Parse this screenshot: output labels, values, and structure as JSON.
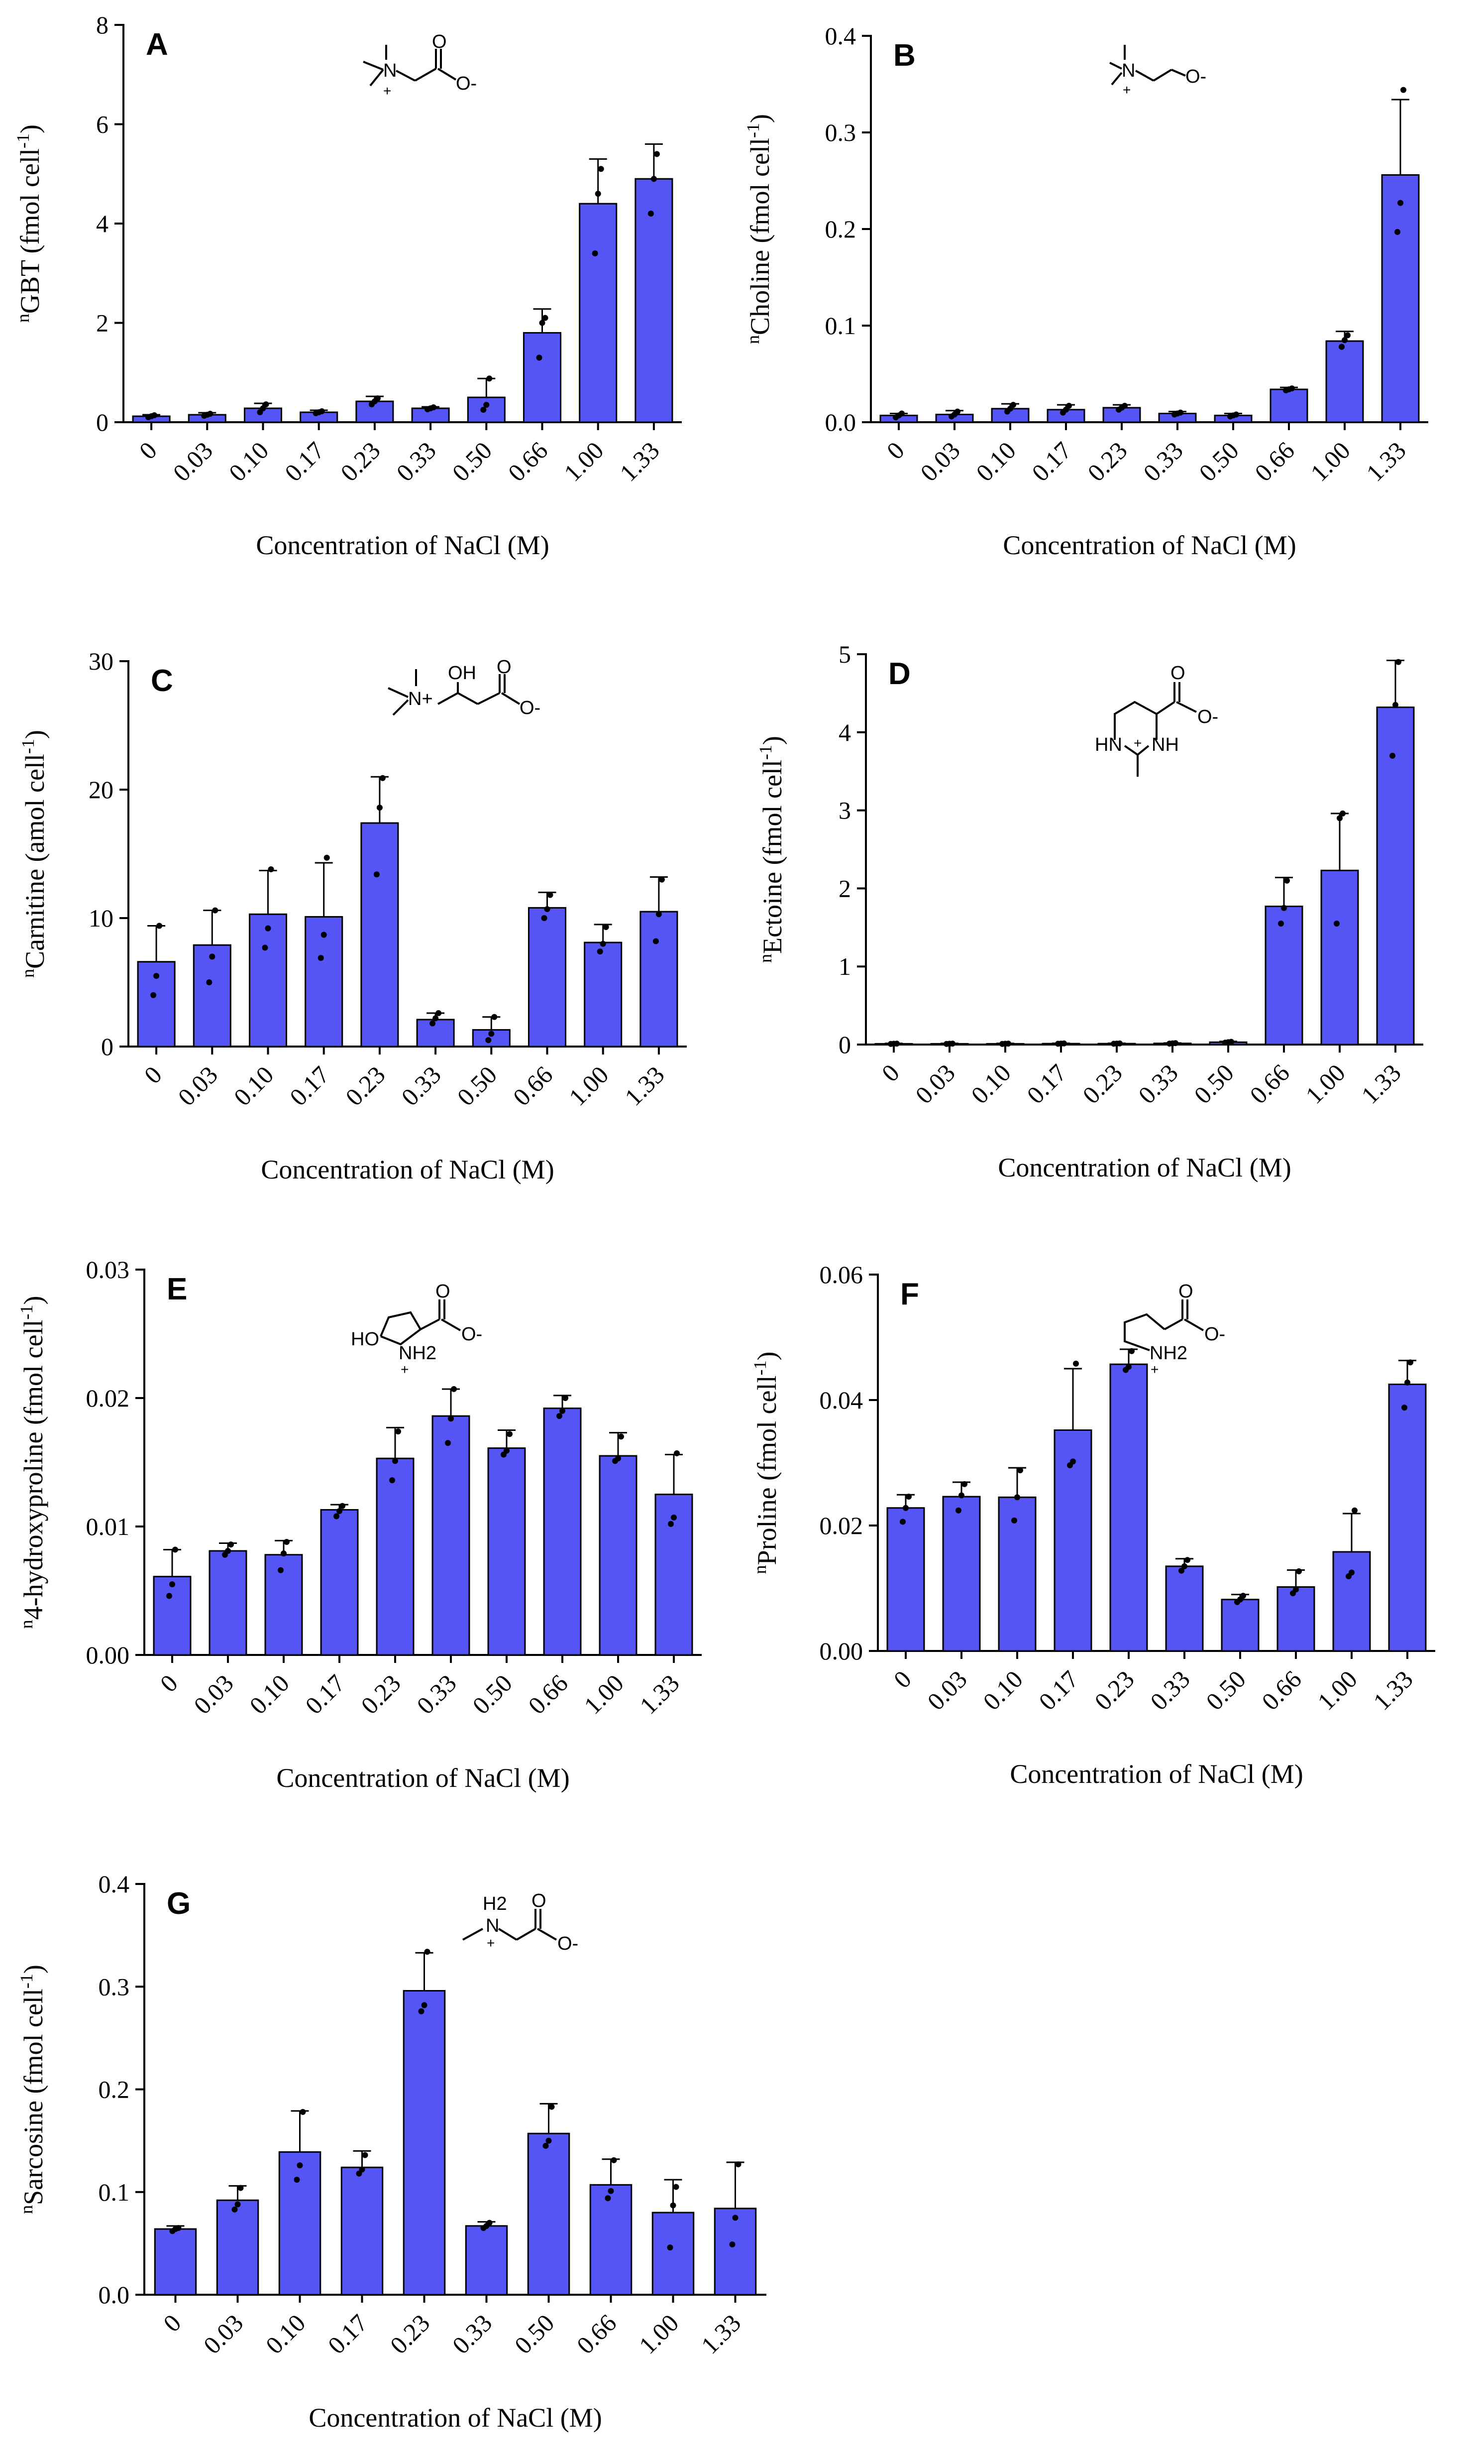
{
  "figure": {
    "x_axis_title": "Concentration of NaCl (M)",
    "bar_color": "#5555f5"
  },
  "chart_data": [
    {
      "type": "bar",
      "panel": "A",
      "ylabel": "nGBT (fmol cell-1)",
      "ylabel_parts": {
        "sup_prefix": "n",
        "main": "GBT (fmol cell",
        "sup": "-1",
        "close": ")"
      },
      "xlabel": "Concentration of NaCl (M)",
      "categories": [
        "0",
        "0.03",
        "0.10",
        "0.17",
        "0.23",
        "0.33",
        "0.50",
        "0.66",
        "1.00",
        "1.33"
      ],
      "values": [
        0.12,
        0.15,
        0.28,
        0.2,
        0.42,
        0.28,
        0.5,
        1.8,
        4.4,
        4.9
      ],
      "errors": [
        0.03,
        0.04,
        0.1,
        0.04,
        0.1,
        0.03,
        0.38,
        0.48,
        0.9,
        0.7
      ],
      "points": [
        [
          0.1,
          0.12,
          0.14
        ],
        [
          0.13,
          0.15,
          0.17
        ],
        [
          0.2,
          0.28,
          0.36
        ],
        [
          0.18,
          0.2,
          0.22
        ],
        [
          0.36,
          0.42,
          0.48
        ],
        [
          0.26,
          0.28,
          0.3
        ],
        [
          0.25,
          0.35,
          0.88
        ],
        [
          1.3,
          2.0,
          2.1
        ],
        [
          3.4,
          4.6,
          5.1
        ],
        [
          4.2,
          4.9,
          5.4
        ]
      ],
      "yticks": [
        0,
        2,
        4,
        6,
        8
      ],
      "ytick_labels": [
        "0",
        "2",
        "4",
        "6",
        "8"
      ],
      "ylim": [
        0,
        8
      ],
      "structure": "GBT"
    },
    {
      "type": "bar",
      "panel": "B",
      "ylabel": "nCholine (fmol cell-1)",
      "ylabel_parts": {
        "sup_prefix": "n",
        "main": "Choline (fmol cell",
        "sup": "-1",
        "close": ")"
      },
      "xlabel": "Concentration of NaCl (M)",
      "categories": [
        "0",
        "0.03",
        "0.10",
        "0.17",
        "0.23",
        "0.33",
        "0.50",
        "0.66",
        "1.00",
        "1.33"
      ],
      "values": [
        0.007,
        0.008,
        0.014,
        0.013,
        0.015,
        0.009,
        0.007,
        0.034,
        0.084,
        0.256
      ],
      "errors": [
        0.002,
        0.004,
        0.005,
        0.005,
        0.003,
        0.002,
        0.002,
        0.002,
        0.01,
        0.078
      ],
      "points": [
        [
          0.005,
          0.007,
          0.009
        ],
        [
          0.006,
          0.008,
          0.011
        ],
        [
          0.011,
          0.014,
          0.018
        ],
        [
          0.01,
          0.013,
          0.017
        ],
        [
          0.013,
          0.015,
          0.017
        ],
        [
          0.008,
          0.009,
          0.01
        ],
        [
          0.006,
          0.007,
          0.008
        ],
        [
          0.033,
          0.034,
          0.035
        ],
        [
          0.078,
          0.085,
          0.09
        ],
        [
          0.197,
          0.227,
          0.344
        ]
      ],
      "yticks": [
        0,
        0.1,
        0.2,
        0.3,
        0.4
      ],
      "ytick_labels": [
        "0.0",
        "0.1",
        "0.2",
        "0.3",
        "0.4"
      ],
      "ylim": [
        0,
        0.4
      ],
      "structure": "Choline"
    },
    {
      "type": "bar",
      "panel": "C",
      "ylabel": "nCarnitine (amol cell-1)",
      "ylabel_parts": {
        "sup_prefix": "n",
        "main": "Carnitine (amol cell",
        "sup": "-1",
        "close": ")"
      },
      "xlabel": "Concentration of NaCl (M)",
      "categories": [
        "0",
        "0.03",
        "0.10",
        "0.17",
        "0.23",
        "0.33",
        "0.50",
        "0.66",
        "1.00",
        "1.33"
      ],
      "values": [
        6.6,
        7.9,
        10.3,
        10.1,
        17.4,
        2.1,
        1.3,
        10.8,
        8.1,
        10.5
      ],
      "errors": [
        2.8,
        2.7,
        3.4,
        4.2,
        3.6,
        0.5,
        1.0,
        1.2,
        1.4,
        2.7
      ],
      "points": [
        [
          4.0,
          5.5,
          9.4
        ],
        [
          5.0,
          7.0,
          10.6
        ],
        [
          7.7,
          9.2,
          13.8
        ],
        [
          6.9,
          8.7,
          14.7
        ],
        [
          13.4,
          18.6,
          20.9
        ],
        [
          1.8,
          2.2,
          2.6
        ],
        [
          0.5,
          1.0,
          2.3
        ],
        [
          10.0,
          10.7,
          11.8
        ],
        [
          7.4,
          8.0,
          9.3
        ],
        [
          8.2,
          10.3,
          13.0
        ]
      ],
      "yticks": [
        0,
        10,
        20,
        30
      ],
      "ytick_labels": [
        "0",
        "10",
        "20",
        "30"
      ],
      "ylim": [
        0,
        30
      ],
      "structure": "Carnitine"
    },
    {
      "type": "bar",
      "panel": "D",
      "ylabel": "nEctoine (fmol cell-1)",
      "ylabel_parts": {
        "sup_prefix": "n",
        "main": "Ectoine (fmol cell",
        "sup": "-1",
        "close": ")"
      },
      "xlabel": "Concentration of NaCl (M)",
      "categories": [
        "0",
        "0.03",
        "0.10",
        "0.17",
        "0.23",
        "0.33",
        "0.50",
        "0.66",
        "1.00",
        "1.33"
      ],
      "values": [
        0.01,
        0.01,
        0.01,
        0.012,
        0.012,
        0.015,
        0.03,
        1.77,
        2.23,
        4.32
      ],
      "errors": [
        0.005,
        0.005,
        0.005,
        0.005,
        0.005,
        0.005,
        0.01,
        0.37,
        0.73,
        0.6
      ],
      "points": [
        [
          0.008,
          0.01,
          0.012
        ],
        [
          0.008,
          0.01,
          0.012
        ],
        [
          0.008,
          0.01,
          0.012
        ],
        [
          0.01,
          0.012,
          0.014
        ],
        [
          0.01,
          0.012,
          0.014
        ],
        [
          0.012,
          0.015,
          0.018
        ],
        [
          0.025,
          0.03,
          0.035
        ],
        [
          1.55,
          1.75,
          2.1
        ],
        [
          1.55,
          2.9,
          2.96
        ],
        [
          3.7,
          4.35,
          4.9
        ]
      ],
      "yticks": [
        0,
        1,
        2,
        3,
        4,
        5
      ],
      "ytick_labels": [
        "0",
        "1",
        "2",
        "3",
        "4",
        "5"
      ],
      "ylim": [
        0,
        5
      ],
      "structure": "Ectoine"
    },
    {
      "type": "bar",
      "panel": "E",
      "ylabel": "n4-hydroxyproline (fmol cell-1)",
      "ylabel_parts": {
        "sup_prefix": "n",
        "main": "4-hydroxyproline (fmol cell",
        "sup": "-1",
        "close": ")"
      },
      "xlabel": "Concentration of NaCl (M)",
      "categories": [
        "0",
        "0.03",
        "0.10",
        "0.17",
        "0.23",
        "0.33",
        "0.50",
        "0.66",
        "1.00",
        "1.33"
      ],
      "values": [
        0.0061,
        0.0081,
        0.0078,
        0.0113,
        0.0153,
        0.0186,
        0.0161,
        0.0192,
        0.0155,
        0.0125
      ],
      "errors": [
        0.0021,
        0.0006,
        0.0011,
        0.0004,
        0.0024,
        0.0021,
        0.0014,
        0.001,
        0.0018,
        0.0031
      ],
      "points": [
        [
          0.0046,
          0.0055,
          0.0082
        ],
        [
          0.0078,
          0.0081,
          0.0086
        ],
        [
          0.0066,
          0.0079,
          0.0088
        ],
        [
          0.0108,
          0.0112,
          0.0116
        ],
        [
          0.0136,
          0.0151,
          0.0174
        ],
        [
          0.0165,
          0.0184,
          0.0207
        ],
        [
          0.0156,
          0.0159,
          0.0172
        ],
        [
          0.0186,
          0.019,
          0.02
        ],
        [
          0.0151,
          0.0153,
          0.017
        ],
        [
          0.0102,
          0.0107,
          0.0157
        ]
      ],
      "yticks": [
        0,
        0.01,
        0.02,
        0.03
      ],
      "ytick_labels": [
        "0.00",
        "0.01",
        "0.02",
        "0.03"
      ],
      "ylim": [
        0,
        0.03
      ],
      "structure": "Hydroxyproline"
    },
    {
      "type": "bar",
      "panel": "F",
      "ylabel": "nProline (fmol cell-1)",
      "ylabel_parts": {
        "sup_prefix": "n",
        "main": "Proline (fmol cell",
        "sup": "-1",
        "close": ")"
      },
      "xlabel": "Concentration of NaCl (M)",
      "categories": [
        "0",
        "0.03",
        "0.10",
        "0.17",
        "0.23",
        "0.33",
        "0.50",
        "0.66",
        "1.00",
        "1.33"
      ],
      "values": [
        0.0228,
        0.0246,
        0.0245,
        0.0352,
        0.0457,
        0.0135,
        0.0082,
        0.0102,
        0.0158,
        0.0425
      ],
      "errors": [
        0.0021,
        0.0023,
        0.0047,
        0.0098,
        0.0024,
        0.0012,
        0.0008,
        0.0027,
        0.0061,
        0.0038
      ],
      "points": [
        [
          0.0206,
          0.0228,
          0.0246
        ],
        [
          0.0224,
          0.0248,
          0.0266
        ],
        [
          0.0208,
          0.0245,
          0.0288
        ],
        [
          0.0296,
          0.0302,
          0.0458
        ],
        [
          0.0448,
          0.0453,
          0.0478
        ],
        [
          0.0128,
          0.0135,
          0.0145
        ],
        [
          0.0078,
          0.0082,
          0.0088
        ],
        [
          0.0092,
          0.0098,
          0.0127
        ],
        [
          0.0119,
          0.0125,
          0.0224
        ],
        [
          0.0388,
          0.0428,
          0.046
        ]
      ],
      "yticks": [
        0,
        0.02,
        0.04,
        0.06
      ],
      "ytick_labels": [
        "0.00",
        "0.02",
        "0.04",
        "0.06"
      ],
      "ylim": [
        0,
        0.06
      ],
      "structure": "Proline"
    },
    {
      "type": "bar",
      "panel": "G",
      "ylabel": "nSarcosine (fmol cell-1)",
      "ylabel_parts": {
        "sup_prefix": "n",
        "main": "Sarcosine (fmol cell",
        "sup": "-1",
        "close": ")"
      },
      "xlabel": "Concentration of NaCl (M)",
      "categories": [
        "0",
        "0.03",
        "0.10",
        "0.17",
        "0.23",
        "0.33",
        "0.50",
        "0.66",
        "1.00",
        "1.33"
      ],
      "values": [
        0.064,
        0.092,
        0.139,
        0.124,
        0.296,
        0.067,
        0.157,
        0.107,
        0.08,
        0.084
      ],
      "errors": [
        0.003,
        0.014,
        0.04,
        0.016,
        0.037,
        0.004,
        0.029,
        0.025,
        0.032,
        0.045
      ],
      "points": [
        [
          0.062,
          0.064,
          0.065
        ],
        [
          0.083,
          0.088,
          0.104
        ],
        [
          0.112,
          0.126,
          0.178
        ],
        [
          0.118,
          0.122,
          0.136
        ],
        [
          0.276,
          0.282,
          0.334
        ],
        [
          0.065,
          0.067,
          0.07
        ],
        [
          0.145,
          0.15,
          0.183
        ],
        [
          0.094,
          0.101,
          0.131
        ],
        [
          0.046,
          0.087,
          0.105
        ],
        [
          0.049,
          0.075,
          0.127
        ]
      ],
      "yticks": [
        0,
        0.1,
        0.2,
        0.3,
        0.4
      ],
      "ytick_labels": [
        "0.0",
        "0.1",
        "0.2",
        "0.3",
        "0.4"
      ],
      "ylim": [
        0,
        0.4
      ],
      "structure": "Sarcosine"
    }
  ],
  "structures": {
    "GBT": {
      "atoms": [
        "N",
        "+",
        "O",
        "O-"
      ]
    },
    "Choline": {
      "atoms": [
        "N",
        "+",
        "O-"
      ]
    },
    "Carnitine": {
      "atoms": [
        "N+",
        "OH",
        "O",
        "O-"
      ]
    },
    "Ectoine": {
      "atoms": [
        "HN",
        "NH",
        "+",
        "O",
        "O-"
      ]
    },
    "Hydroxyproline": {
      "atoms": [
        "HO",
        "NH2",
        "+",
        "O",
        "O-"
      ]
    },
    "Proline": {
      "atoms": [
        "NH2",
        "+",
        "O",
        "O-"
      ]
    },
    "Sarcosine": {
      "atoms": [
        "H2",
        "N",
        "+",
        "O",
        "O-"
      ]
    }
  }
}
